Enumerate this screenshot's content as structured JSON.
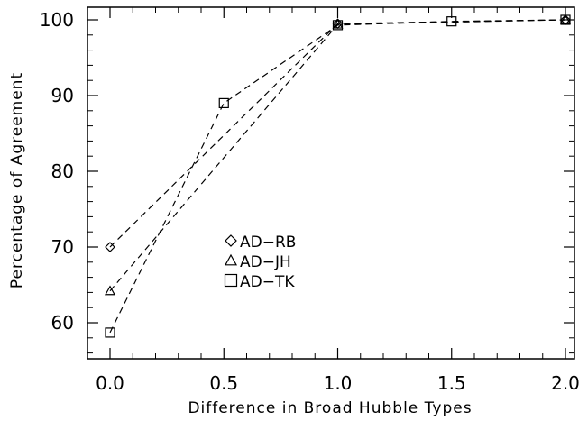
{
  "chart_data": {
    "type": "line",
    "title": "",
    "xlabel": "Difference in Broad Hubble Types",
    "ylabel": "Percentage of Agreement",
    "xlim": [
      -0.1,
      2.05
    ],
    "ylim": [
      55,
      101.5
    ],
    "x_ticks": [
      "0.0",
      "0.5",
      "1.0",
      "1.5",
      "2.0"
    ],
    "y_ticks": [
      "60",
      "70",
      "80",
      "90",
      "100"
    ],
    "grid": false,
    "legend_position": "center-left",
    "line_style": "dashed",
    "color": "#000000",
    "series": [
      {
        "name": "AD−RB",
        "marker": "diamond",
        "x": [
          0.0,
          1.0,
          2.0
        ],
        "y": [
          70.0,
          99.5,
          100.0
        ]
      },
      {
        "name": "AD−JH",
        "marker": "triangle",
        "x": [
          0.0,
          1.0,
          2.0
        ],
        "y": [
          64.2,
          99.4,
          100.0
        ]
      },
      {
        "name": "AD−TK",
        "marker": "square",
        "x": [
          0.0,
          0.5,
          1.0,
          1.5,
          2.0
        ],
        "y": [
          58.7,
          89.0,
          99.3,
          99.8,
          100.0
        ]
      }
    ]
  }
}
